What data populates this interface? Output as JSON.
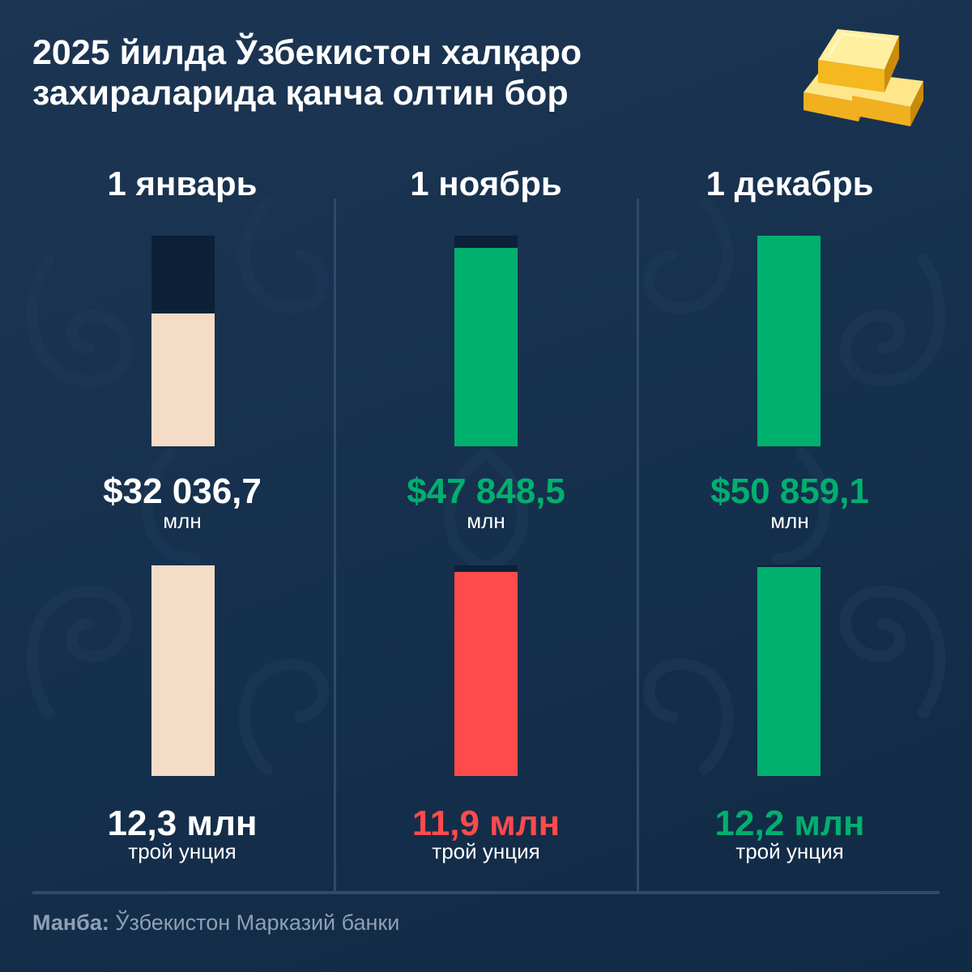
{
  "title_line1": "2025 йилда Ўзбекистон халқаро",
  "title_line2": "захираларида қанча олтин бор",
  "colors": {
    "neutral": "#f5dcc6",
    "up": "#00b06e",
    "down": "#ff4b4b",
    "white": "#ffffff",
    "track": "#0c2038"
  },
  "icons": {
    "gold": "gold-bars-icon"
  },
  "columns": [
    {
      "date": "1 январь",
      "usd_label": "$32 036,7",
      "usd_unit": "млн",
      "oz_label": "12,3 млн",
      "oz_unit": "трой унция",
      "usd_color": "white",
      "oz_color": "white",
      "usd_bar_color": "neutral",
      "oz_bar_color": "neutral"
    },
    {
      "date": "1 ноябрь",
      "usd_label": "$47 848,5",
      "usd_unit": "млн",
      "oz_label": "11,9 млн",
      "oz_unit": "трой унция",
      "usd_color": "up",
      "oz_color": "down",
      "usd_bar_color": "up",
      "oz_bar_color": "down"
    },
    {
      "date": "1 декабрь",
      "usd_label": "$50 859,1",
      "usd_unit": "млн",
      "oz_label": "12,2 млн",
      "oz_unit": "трой унция",
      "usd_color": "up",
      "oz_color": "up",
      "usd_bar_color": "up",
      "oz_bar_color": "up"
    }
  ],
  "source_label": "Манба:",
  "source_text": "Ўзбекистон Марказий банки",
  "chart_data": [
    {
      "type": "bar",
      "title": "",
      "categories": [
        "1 январь",
        "1 ноябрь",
        "1 декабрь"
      ],
      "series": [
        {
          "name": "",
          "values": [
            32036.7,
            47848.5,
            50859.1
          ]
        }
      ],
      "unit": "млн",
      "ylim": [
        0,
        50859.1
      ]
    },
    {
      "type": "bar",
      "title": "",
      "categories": [
        "1 январь",
        "1 ноябрь",
        "1 декабрь"
      ],
      "series": [
        {
          "name": "",
          "values": [
            12.3,
            11.9,
            12.2
          ]
        }
      ],
      "unit": "млн трой унция",
      "ylim": [
        0,
        12.3
      ]
    }
  ]
}
